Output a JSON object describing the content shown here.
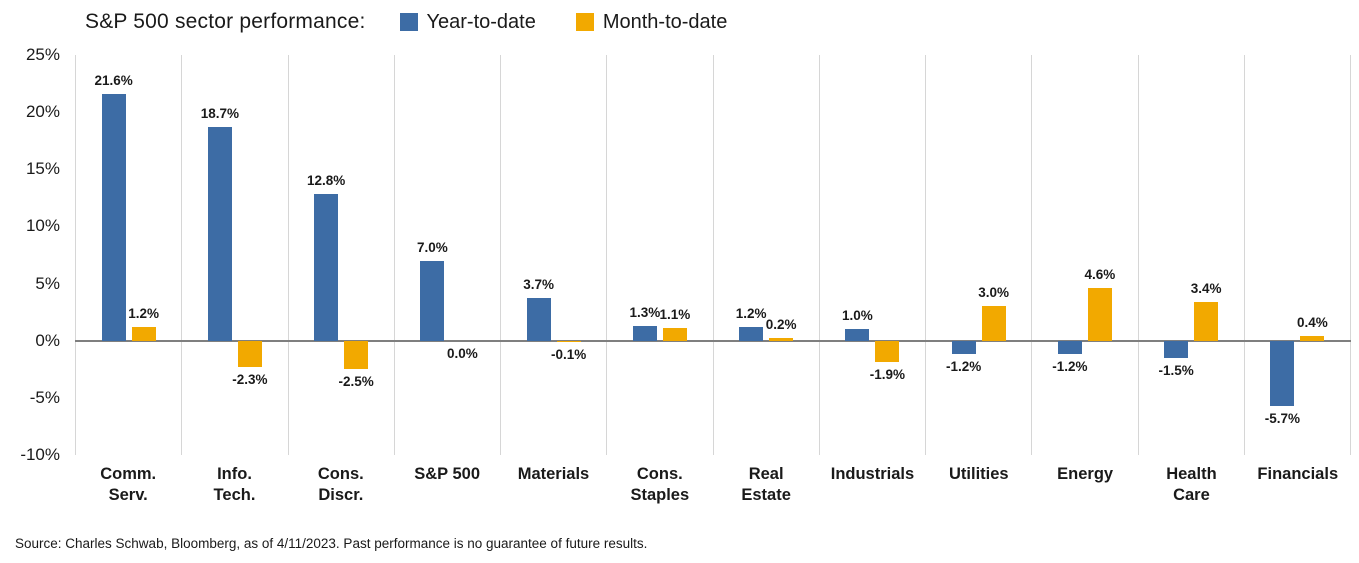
{
  "title": "S&P 500 sector performance:",
  "legend": {
    "ytd": {
      "label": "Year-to-date",
      "color": "#3d6ca5"
    },
    "mtd": {
      "label": "Month-to-date",
      "color": "#f2a900"
    }
  },
  "source": "Source: Charles Schwab, Bloomberg, as of 4/11/2023.  Past performance is no guarantee of future results.",
  "chart_data": {
    "type": "bar",
    "title": "S&P 500 sector performance",
    "categories": [
      "Comm.\nServ.",
      "Info.\nTech.",
      "Cons.\nDiscr.",
      "S&P 500",
      "Materials",
      "Cons.\nStaples",
      "Real\nEstate",
      "Industrials",
      "Utilities",
      "Energy",
      "Health\nCare",
      "Financials"
    ],
    "series": [
      {
        "name": "Year-to-date",
        "color": "#3d6ca5",
        "values": [
          21.6,
          18.7,
          12.8,
          7.0,
          3.7,
          1.3,
          1.2,
          1.0,
          -1.2,
          -1.2,
          -1.5,
          -5.7
        ]
      },
      {
        "name": "Month-to-date",
        "color": "#f2a900",
        "values": [
          1.2,
          -2.3,
          -2.5,
          0.0,
          -0.1,
          1.1,
          0.2,
          -1.9,
          3.0,
          4.6,
          3.4,
          0.4
        ]
      }
    ],
    "ylim": [
      -10,
      25
    ],
    "ytick_step": 5,
    "yticks": [
      25,
      20,
      15,
      10,
      5,
      0,
      -5,
      -10
    ],
    "ytick_labels": [
      "25%",
      "20%",
      "15%",
      "10%",
      "5%",
      "0%",
      "-5%",
      "-10%"
    ],
    "grid": "vertical",
    "legend_position": "top",
    "value_label_format": "one-decimal-percent"
  }
}
